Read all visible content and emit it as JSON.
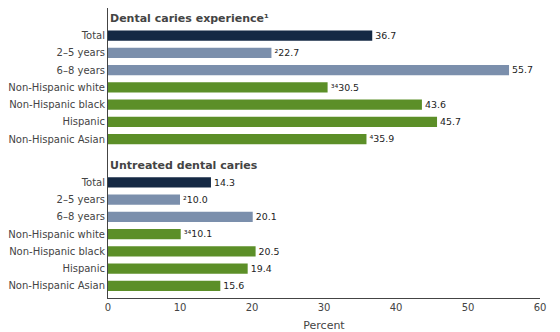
{
  "chart_data": {
    "type": "bar",
    "orientation": "horizontal",
    "annotations": [
      "Dental caries experience¹",
      "Untreated dental caries"
    ],
    "categories": [
      "Total",
      "2–5 years",
      "6–8 years",
      "Non-Hispanic white",
      "Non-Hispanic black",
      "Hispanic",
      "Non-Hispanic Asian",
      "Total",
      "2–5 years",
      "6–8 years",
      "Non-Hispanic white",
      "Non-Hispanic black",
      "Hispanic",
      "Non-Hispanic Asian"
    ],
    "values": [
      36.7,
      22.7,
      55.7,
      30.5,
      43.6,
      45.7,
      35.9,
      14.3,
      10.0,
      20.1,
      10.1,
      20.5,
      19.4,
      15.6
    ],
    "value_labels": [
      "36.7",
      "²22.7",
      "55.7",
      "³⁴​30.5",
      "43.6",
      "45.7",
      "⁴35.9",
      "14.3",
      "²10.0",
      "20.1",
      "³⁴​10.1",
      "20.5",
      "19.4",
      "15.6"
    ],
    "colors": [
      "#152944",
      "#7b8fac",
      "#7b8fac",
      "#5c8f28",
      "#5c8f28",
      "#5c8f28",
      "#5c8f28",
      "#152944",
      "#7b8fac",
      "#7b8fac",
      "#5c8f28",
      "#5c8f28",
      "#5c8f28",
      "#5c8f28"
    ],
    "xlabel": "Percent",
    "xlim": [
      0,
      60
    ],
    "xticks": [
      0,
      10,
      20,
      30,
      40,
      50,
      60
    ],
    "data_labels": true,
    "grid": false
  }
}
